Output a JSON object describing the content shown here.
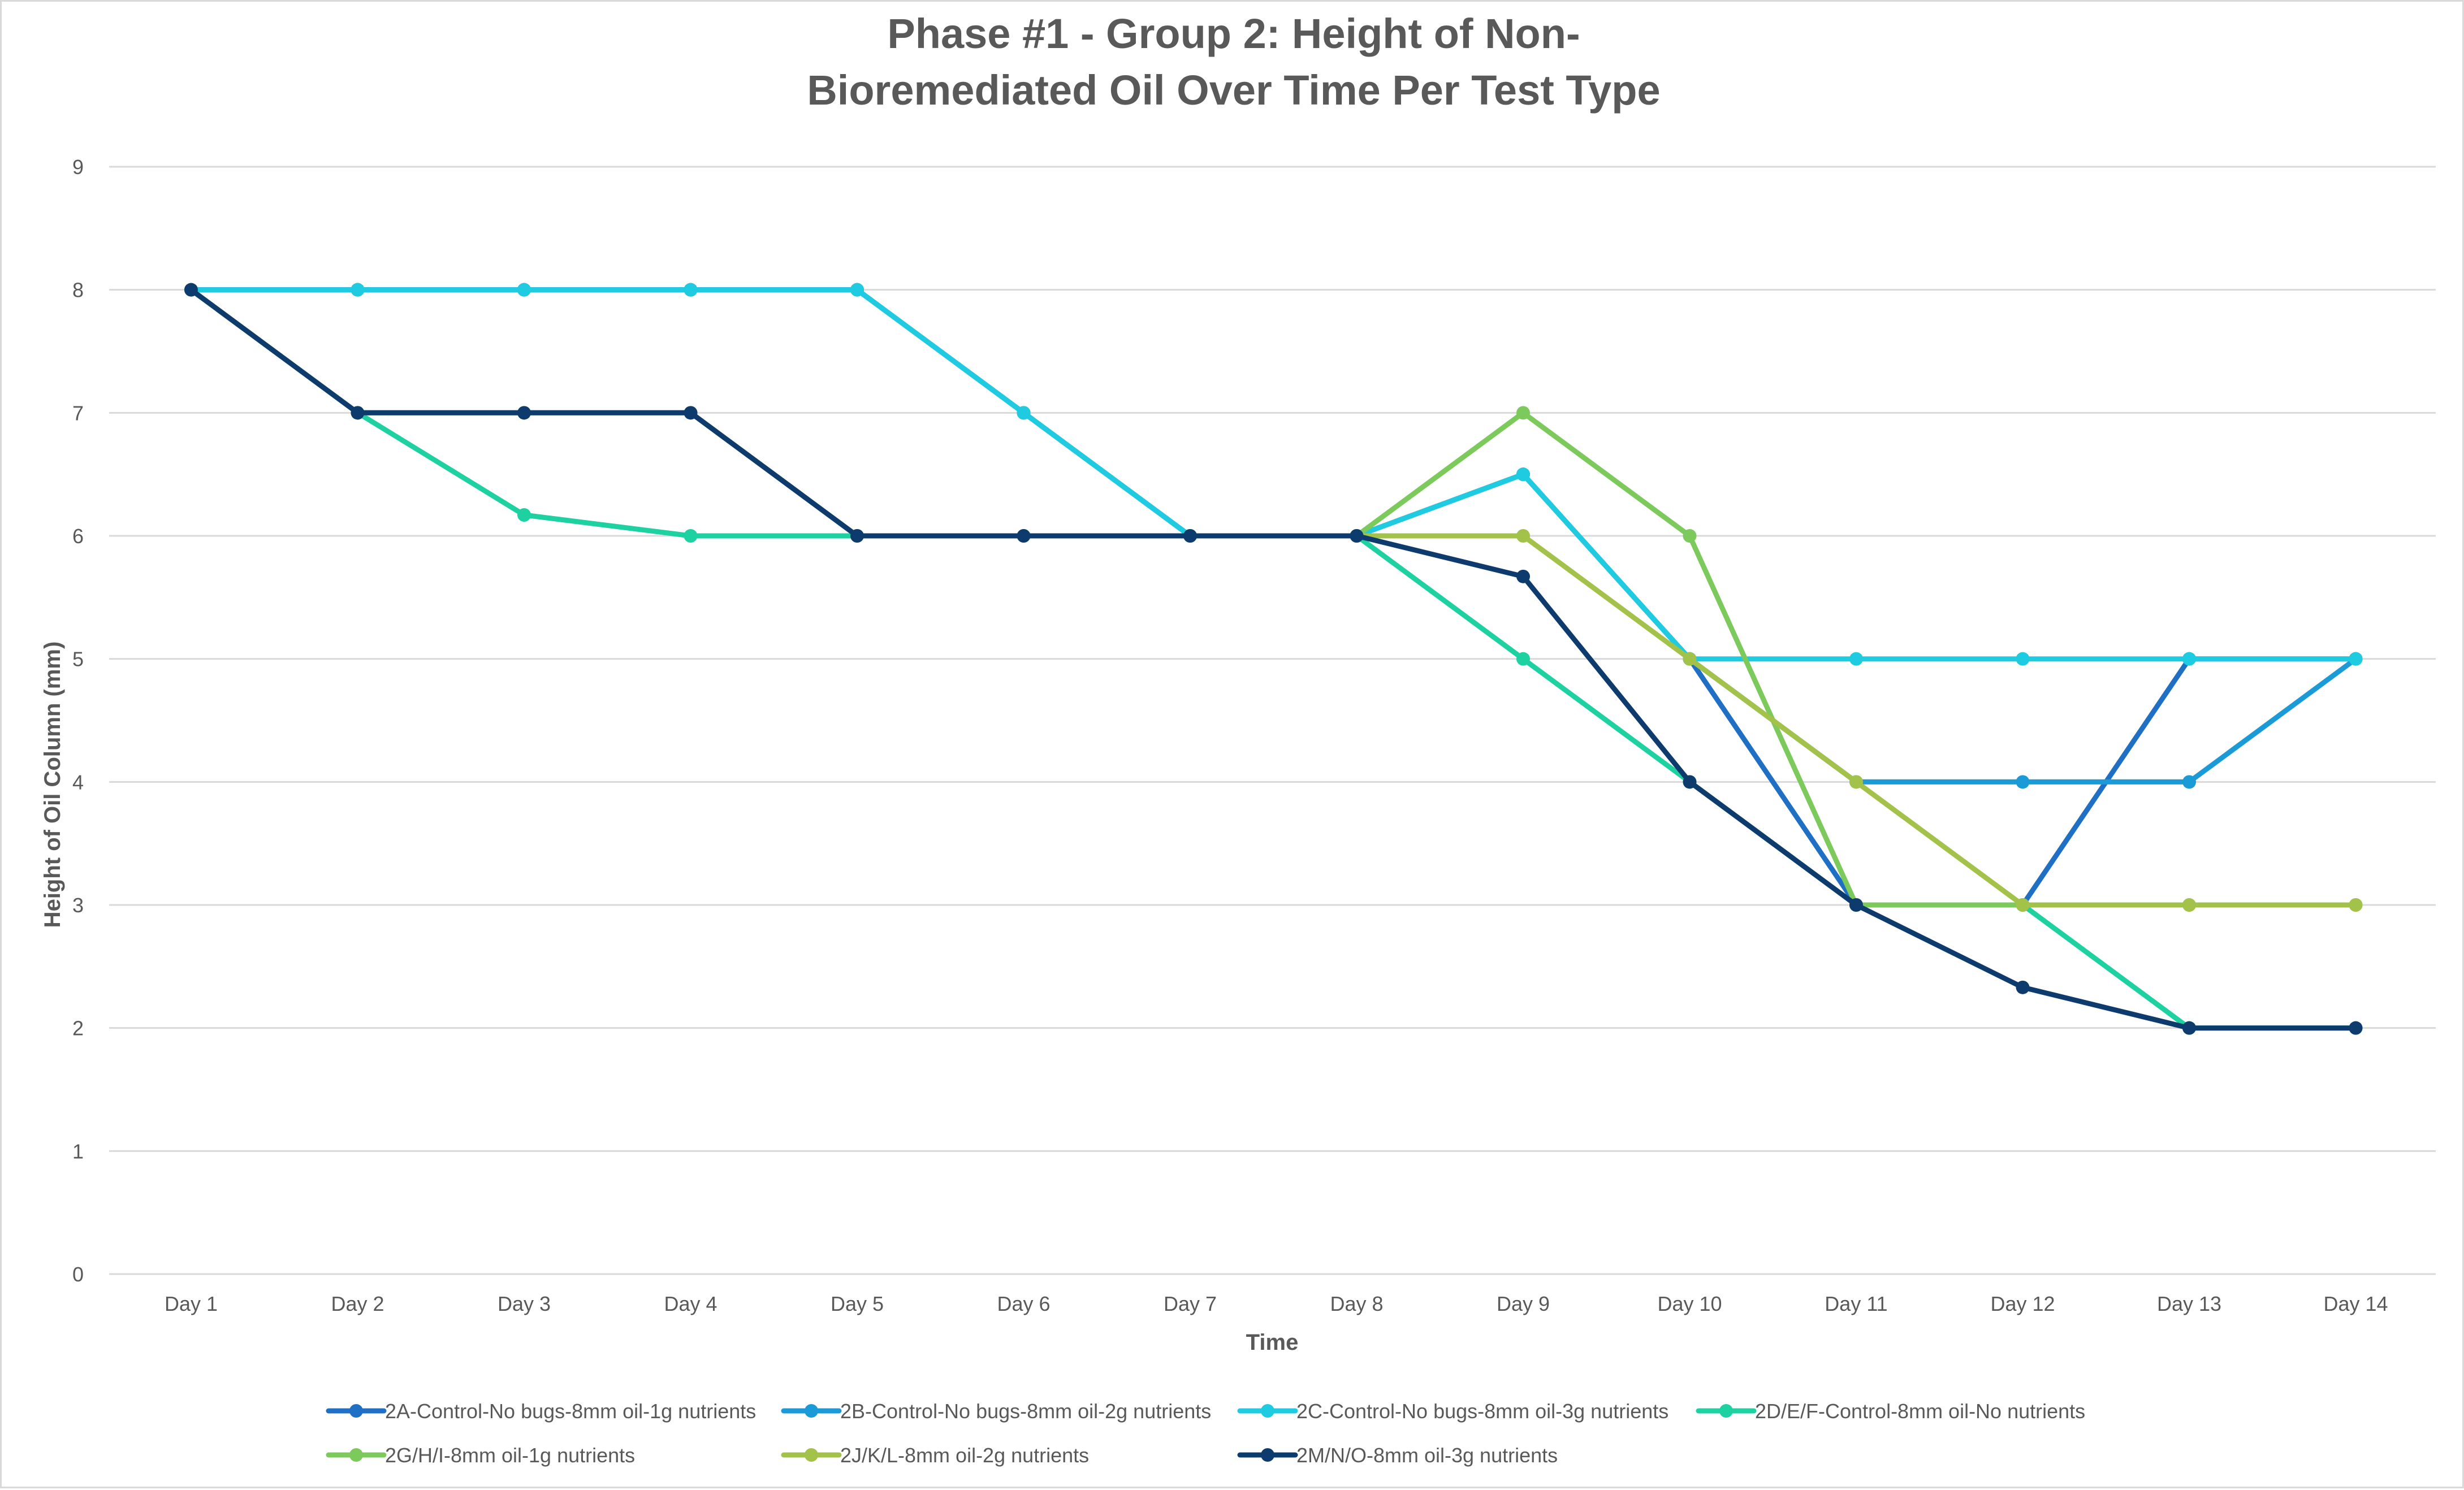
{
  "chart_data": {
    "type": "line",
    "title_lines": [
      "Phase #1 - Group 2: Height of Non-",
      "Bioremediated Oil Over Time Per Test Type"
    ],
    "xlabel": "Time",
    "ylabel": "Height of Oil Column (mm)",
    "categories": [
      "Day 1",
      "Day 2",
      "Day 3",
      "Day 4",
      "Day 5",
      "Day 6",
      "Day 7",
      "Day 8",
      "Day 9",
      "Day 10",
      "Day 11",
      "Day 12",
      "Day 13",
      "Day 14"
    ],
    "ylim": [
      0,
      9
    ],
    "yticks": [
      "0",
      "1",
      "2",
      "3",
      "4",
      "5",
      "6",
      "7",
      "8",
      "9"
    ],
    "grid": true,
    "legend_position": "bottom",
    "series": [
      {
        "name": "2A-Control-No bugs-8mm oil-1g nutrients",
        "color": "#1F6FC4",
        "values": [
          8,
          8,
          8,
          8,
          8,
          7,
          6,
          6,
          6.5,
          5,
          3,
          3,
          5,
          5
        ]
      },
      {
        "name": "2B-Control-No bugs-8mm oil-2g nutrients",
        "color": "#1A9AD6",
        "values": [
          8,
          8,
          8,
          8,
          8,
          7,
          6,
          6,
          6.5,
          5,
          4,
          4,
          4,
          5
        ]
      },
      {
        "name": "2C-Control-No bugs-8mm oil-3g nutrients",
        "color": "#1ECBE1",
        "values": [
          8,
          8,
          8,
          8,
          8,
          7,
          6,
          6,
          6.5,
          5,
          5,
          5,
          5,
          5
        ]
      },
      {
        "name": "2D/E/F-Control-8mm oil-No nutrients",
        "color": "#1DD1A1",
        "values": [
          8,
          7,
          6.17,
          6,
          6,
          6,
          6,
          6,
          5,
          4,
          3,
          3,
          2,
          2
        ]
      },
      {
        "name": "2G/H/I-8mm oil-1g nutrients",
        "color": "#7CC95C",
        "values": [
          8,
          7,
          7,
          7,
          6,
          6,
          6,
          6,
          7,
          6,
          3,
          3,
          3,
          3
        ]
      },
      {
        "name": "2J/K/L-8mm oil-2g nutrients",
        "color": "#A3C24A",
        "values": [
          8,
          7,
          7,
          7,
          6,
          6,
          6,
          6,
          6,
          5,
          4,
          3,
          3,
          3
        ]
      },
      {
        "name": "2M/N/O-8mm oil-3g nutrients",
        "color": "#0D3B6E",
        "values": [
          8,
          7,
          7,
          7,
          6,
          6,
          6,
          6,
          5.67,
          4,
          3,
          2.33,
          2,
          2
        ]
      }
    ]
  }
}
